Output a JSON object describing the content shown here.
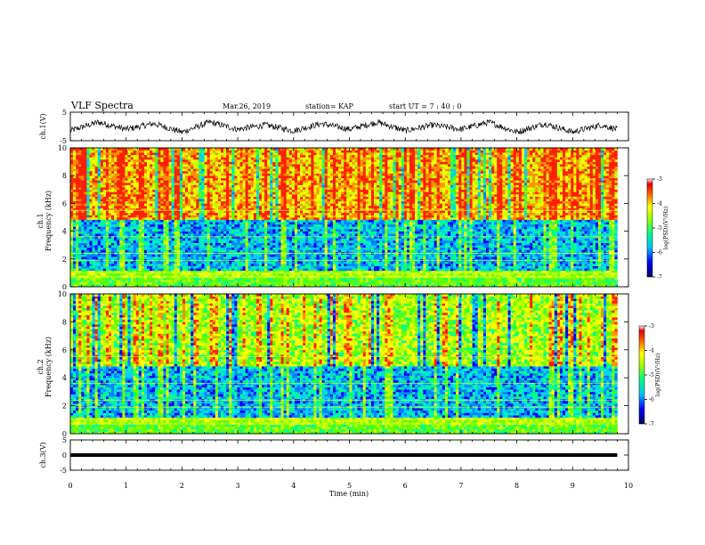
{
  "header": {
    "title": "VLF Spectra",
    "date": "Mar.26, 2019",
    "station": "station= KAP",
    "start": "start  UT =   7 : 40 : 0"
  },
  "chart_data": [
    {
      "type": "line",
      "name": "ch1-waveform",
      "ylabel": "ch.1(V)",
      "ylim": [
        -5,
        5
      ],
      "yticks": [
        "5",
        "-5"
      ],
      "xlim": [
        0,
        10
      ],
      "x": [
        0,
        0.5,
        1,
        1.5,
        2,
        2.5,
        3,
        3.5,
        4,
        4.5,
        5,
        5.5,
        6,
        6.5,
        7,
        7.5,
        8,
        8.5,
        9,
        9.5,
        9.8
      ],
      "y": [
        -1.5,
        1.5,
        -1,
        1,
        -2,
        1.5,
        -1,
        0.5,
        -1.5,
        1,
        -1,
        1.5,
        -1.5,
        0.5,
        -1,
        1.5,
        -2,
        1,
        -2,
        0.5,
        -1
      ]
    },
    {
      "type": "heatmap",
      "name": "ch1-spectrogram",
      "ylabel": "ch.1\nFrequency (kHz)",
      "ylabel_line1": "ch.1",
      "ylabel_line2": "Frequency  (kHz)",
      "ylim": [
        0,
        10
      ],
      "yticks": [
        "0",
        "2",
        "4",
        "6",
        "8",
        "10"
      ],
      "xlim": [
        0,
        10
      ],
      "data_end_min": 9.8,
      "colorbar": {
        "label": "log(PSD)(V²/Hz)",
        "range": [
          -7,
          -3
        ],
        "ticks": [
          "-3",
          "-4",
          "-5",
          "-6",
          "-7"
        ]
      }
    },
    {
      "type": "heatmap",
      "name": "ch2-spectrogram",
      "ylabel_line1": "ch.2",
      "ylabel_line2": "Frequency  (kHz)",
      "ylim": [
        0,
        10
      ],
      "yticks": [
        "0",
        "2",
        "4",
        "6",
        "8",
        "10"
      ],
      "xlim": [
        0,
        10
      ],
      "data_end_min": 9.8,
      "colorbar": {
        "label": "log(PSD)(V²/Hz)",
        "range": [
          -7,
          -3
        ],
        "ticks": [
          "-3",
          "-4",
          "-5",
          "-6",
          "-7"
        ]
      }
    },
    {
      "type": "line",
      "name": "ch3-waveform",
      "ylabel": "ch.3(V)",
      "ylim": [
        -5,
        5
      ],
      "yticks": [
        "5",
        "0",
        "-5"
      ],
      "xlim": [
        0,
        10
      ],
      "x": [
        0,
        9.8
      ],
      "y": [
        0,
        0
      ]
    }
  ],
  "xaxis": {
    "label": "Time  (min)",
    "ticks": [
      "0",
      "1",
      "2",
      "3",
      "4",
      "5",
      "6",
      "7",
      "8",
      "9",
      "10"
    ]
  }
}
